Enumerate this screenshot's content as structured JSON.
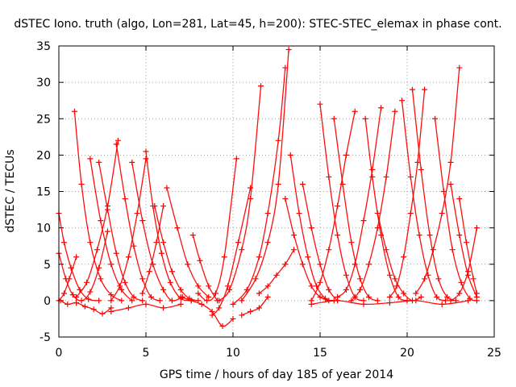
{
  "chart_data": {
    "type": "scatter",
    "title": "dSTEC Iono. truth (algo, Lon=281, Lat=45, h=200): STEC-STEC_elemax in phase cont.",
    "xlabel": "GPS time / hours of day 185 of year 2014",
    "ylabel": "dSTEC  / TECUs",
    "xlim": [
      0,
      25
    ],
    "ylim": [
      -5,
      35
    ],
    "xticks": [
      0,
      5,
      10,
      15,
      20,
      25
    ],
    "yticks": [
      -5,
      0,
      5,
      10,
      15,
      20,
      25,
      30,
      35
    ],
    "grid": true,
    "marker": "plus",
    "color": "#ff0000",
    "series": [
      {
        "x": [
          0.0,
          0.4,
          0.8,
          1.3,
          1.8,
          2.3,
          2.8
        ],
        "y": [
          6.5,
          3.0,
          0.8,
          0.0,
          1.2,
          4.5,
          9.5
        ]
      },
      {
        "x": [
          0.0,
          0.3,
          0.7,
          1.2,
          1.7,
          2.3
        ],
        "y": [
          12.0,
          8.0,
          4.5,
          1.5,
          0.2,
          0.0
        ]
      },
      {
        "x": [
          0.0,
          0.3,
          0.6,
          1.0
        ],
        "y": [
          0.0,
          1.0,
          3.0,
          6.0
        ]
      },
      {
        "x": [
          0.1,
          0.5,
          1.0,
          1.5,
          2.0,
          2.5,
          3.0
        ],
        "y": [
          0.0,
          -0.5,
          -0.3,
          -0.8,
          -1.2,
          -1.8,
          -1.0
        ]
      },
      {
        "x": [
          0.9,
          1.3,
          1.8,
          2.4,
          3.0,
          3.6
        ],
        "y": [
          26.0,
          16.0,
          8.0,
          3.0,
          0.8,
          0.0
        ]
      },
      {
        "x": [
          1.0,
          1.6,
          2.2,
          2.8,
          3.4
        ],
        "y": [
          0.5,
          2.5,
          7.0,
          13.0,
          22.0
        ]
      },
      {
        "x": [
          1.8,
          2.4,
          3.0,
          3.6,
          4.2
        ],
        "y": [
          19.5,
          11.0,
          5.0,
          1.5,
          0.0
        ]
      },
      {
        "x": [
          2.3,
          2.8,
          3.3,
          3.8,
          4.3,
          4.8
        ],
        "y": [
          19.0,
          12.5,
          6.5,
          2.5,
          0.5,
          0.0
        ]
      },
      {
        "x": [
          3.0,
          3.5,
          4.0,
          4.5,
          5.0
        ],
        "y": [
          0.0,
          2.0,
          6.0,
          12.0,
          19.5
        ]
      },
      {
        "x": [
          3.3,
          3.8,
          4.3,
          4.8,
          5.3,
          5.8
        ],
        "y": [
          21.5,
          14.0,
          7.5,
          3.0,
          0.5,
          0.0
        ]
      },
      {
        "x": [
          3.0,
          4.0,
          5.0,
          6.0,
          7.0
        ],
        "y": [
          -1.5,
          -1.0,
          -0.5,
          -1.0,
          -0.5
        ]
      },
      {
        "x": [
          4.2,
          4.8,
          5.4,
          6.0,
          6.5,
          7.1
        ],
        "y": [
          19.0,
          11.0,
          5.0,
          1.5,
          0.0,
          0.5
        ]
      },
      {
        "x": [
          5.0,
          5.4,
          5.9,
          6.4,
          7.0,
          7.6
        ],
        "y": [
          20.5,
          13.0,
          6.5,
          2.5,
          0.3,
          0.0
        ]
      },
      {
        "x": [
          4.8,
          5.2,
          5.6,
          6.0
        ],
        "y": [
          1.0,
          4.0,
          8.0,
          13.0
        ]
      },
      {
        "x": [
          5.5,
          6.0,
          6.5,
          7.0,
          7.5,
          8.0
        ],
        "y": [
          13.0,
          8.0,
          4.0,
          1.5,
          0.3,
          0.0
        ]
      },
      {
        "x": [
          6.2,
          6.8,
          7.4,
          8.0,
          8.6
        ],
        "y": [
          15.5,
          10.0,
          5.0,
          2.0,
          0.5
        ]
      },
      {
        "x": [
          7.0,
          7.6,
          8.2,
          8.8,
          9.4,
          10.0
        ],
        "y": [
          0.5,
          0.0,
          -0.5,
          -1.5,
          -3.5,
          -2.5
        ]
      },
      {
        "x": [
          7.7,
          8.1,
          8.6,
          9.1
        ],
        "y": [
          9.0,
          5.5,
          2.0,
          0.0
        ]
      },
      {
        "x": [
          8.0,
          8.5,
          9.0,
          9.5,
          10.2
        ],
        "y": [
          1.0,
          0.0,
          1.0,
          6.0,
          19.5
        ]
      },
      {
        "x": [
          8.8,
          9.2,
          9.7,
          10.3,
          11.0
        ],
        "y": [
          -2.0,
          -1.0,
          2.0,
          8.0,
          15.5
        ]
      },
      {
        "x": [
          9.2,
          9.8,
          10.5,
          11.0,
          11.6
        ],
        "y": [
          0.0,
          1.5,
          7.0,
          14.0,
          29.5
        ]
      },
      {
        "x": [
          10.0,
          10.8,
          11.5,
          12.0,
          12.6,
          13.0
        ],
        "y": [
          -0.5,
          1.5,
          6.0,
          12.0,
          22.0,
          32.0
        ]
      },
      {
        "x": [
          10.5,
          11.3,
          12.0,
          12.6,
          13.2
        ],
        "y": [
          0.0,
          3.0,
          8.0,
          16.0,
          34.5
        ]
      },
      {
        "x": [
          10.5,
          11.0,
          11.5,
          12.0
        ],
        "y": [
          -2.0,
          -1.5,
          -1.0,
          0.5
        ]
      },
      {
        "x": [
          11.5,
          12.0,
          12.5,
          13.0,
          13.5
        ],
        "y": [
          1.0,
          2.0,
          3.5,
          5.0,
          7.0
        ]
      },
      {
        "x": [
          13.0,
          13.5,
          14.0,
          14.5,
          15.0,
          15.5
        ],
        "y": [
          14.0,
          9.0,
          5.0,
          2.0,
          0.5,
          0.0
        ]
      },
      {
        "x": [
          13.3,
          13.8,
          14.3,
          14.8,
          15.3,
          15.8
        ],
        "y": [
          20.0,
          12.0,
          6.0,
          2.0,
          0.3,
          0.0
        ]
      },
      {
        "x": [
          14.0,
          14.5,
          15.0,
          15.5,
          16.0
        ],
        "y": [
          16.0,
          10.0,
          5.0,
          1.5,
          0.0
        ]
      },
      {
        "x": [
          14.5,
          15.0,
          15.5,
          16.0,
          16.5,
          17.0
        ],
        "y": [
          0.0,
          2.5,
          7.0,
          13.0,
          20.0,
          26.0
        ]
      },
      {
        "x": [
          15.0,
          15.5,
          16.0,
          16.5,
          17.0,
          17.5
        ],
        "y": [
          27.0,
          17.0,
          9.0,
          3.5,
          0.5,
          0.0
        ]
      },
      {
        "x": [
          15.8,
          16.3,
          16.8,
          17.3,
          17.8,
          18.3
        ],
        "y": [
          25.0,
          16.0,
          8.0,
          3.0,
          0.5,
          0.0
        ]
      },
      {
        "x": [
          16.0,
          16.5,
          17.0,
          17.5,
          18.0,
          18.5
        ],
        "y": [
          0.5,
          1.5,
          5.0,
          11.0,
          18.0,
          26.5
        ]
      },
      {
        "x": [
          16.8,
          17.3,
          17.8,
          18.3,
          18.8,
          19.3
        ],
        "y": [
          0.0,
          1.5,
          5.0,
          10.0,
          17.0,
          26.0
        ]
      },
      {
        "x": [
          17.6,
          18.0,
          18.5,
          19.0,
          19.5,
          20.0
        ],
        "y": [
          25.0,
          17.0,
          9.0,
          3.5,
          0.5,
          0.0
        ]
      },
      {
        "x": [
          18.3,
          18.8,
          19.3,
          19.8,
          20.3,
          20.8
        ],
        "y": [
          12.0,
          7.0,
          3.0,
          1.0,
          0.0,
          0.5
        ]
      },
      {
        "x": [
          19.0,
          19.4,
          19.8,
          20.2,
          20.6,
          21.0
        ],
        "y": [
          0.5,
          2.0,
          6.0,
          12.0,
          19.0,
          29.0
        ]
      },
      {
        "x": [
          19.7,
          20.2,
          20.7,
          21.2,
          21.7,
          22.2
        ],
        "y": [
          27.5,
          17.0,
          9.0,
          3.5,
          0.5,
          0.0
        ]
      },
      {
        "x": [
          20.3,
          20.8,
          21.3,
          21.8,
          22.3,
          22.8
        ],
        "y": [
          29.0,
          18.0,
          9.0,
          3.0,
          0.5,
          0.0
        ]
      },
      {
        "x": [
          20.5,
          21.0,
          21.5,
          22.0,
          22.5,
          23.0
        ],
        "y": [
          1.0,
          3.0,
          7.0,
          12.0,
          19.0,
          32.0
        ]
      },
      {
        "x": [
          21.6,
          22.1,
          22.6,
          23.1,
          23.6,
          24.0
        ],
        "y": [
          25.0,
          15.0,
          7.0,
          2.5,
          0.3,
          0.0
        ]
      },
      {
        "x": [
          22.5,
          23.0,
          23.5,
          24.0
        ],
        "y": [
          16.0,
          9.0,
          3.5,
          0.5
        ]
      },
      {
        "x": [
          23.0,
          23.4,
          23.8,
          24.0
        ],
        "y": [
          14.0,
          8.0,
          3.0,
          1.0
        ]
      },
      {
        "x": [
          22.5,
          23.0,
          23.5,
          24.0
        ],
        "y": [
          0.0,
          1.0,
          4.0,
          10.0
        ]
      },
      {
        "x": [
          14.5,
          16.0,
          17.5,
          19.0,
          20.5,
          22.0,
          23.5
        ],
        "y": [
          -0.5,
          0.0,
          -0.5,
          -0.3,
          0.0,
          -0.5,
          0.0
        ]
      }
    ]
  }
}
